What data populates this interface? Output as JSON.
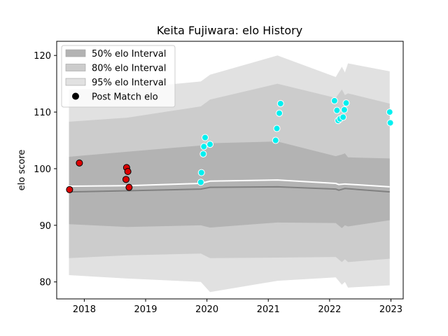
{
  "chart_data": {
    "type": "scatter",
    "title": "Keita Fujiwara: elo History",
    "xlabel": "",
    "ylabel": "elo score",
    "x_range": [
      2017.55,
      2023.2
    ],
    "ylim": [
      77,
      122.5
    ],
    "x_ticks": [
      2018,
      2019,
      2020,
      2021,
      2022,
      2023
    ],
    "x_tick_labels": [
      "2018",
      "2019",
      "2020",
      "2021",
      "2022",
      "2023"
    ],
    "y_ticks": [
      80,
      90,
      100,
      110,
      120
    ],
    "y_tick_labels": [
      "80",
      "90",
      "100",
      "110",
      "120"
    ],
    "grid": false,
    "legend_position": "upper-left",
    "legend": [
      {
        "label": "50% elo Interval",
        "kind": "band",
        "color": "#b3b3b3"
      },
      {
        "label": "80% elo Interval",
        "kind": "band",
        "color": "#cccccc"
      },
      {
        "label": "95% elo Interval",
        "kind": "band",
        "color": "#e1e1e1"
      },
      {
        "label": "Post Match elo",
        "kind": "marker",
        "color": "#000000"
      }
    ],
    "bands": [
      {
        "name": "95% elo Interval",
        "color": "#e1e1e1",
        "x": [
          2017.75,
          2018.7,
          2019.9,
          2020.05,
          2021.15,
          2022.1,
          2022.2,
          2022.25,
          2022.3,
          2022.98
        ],
        "upper": [
          114.0,
          114.2,
          115.4,
          116.6,
          120.0,
          116.2,
          118.0,
          117.0,
          118.6,
          117.2
        ],
        "lower": [
          81.2,
          80.6,
          80.0,
          78.2,
          80.2,
          80.8,
          79.5,
          80.0,
          79.0,
          79.4
        ]
      },
      {
        "name": "80% elo Interval",
        "color": "#cccccc",
        "x": [
          2017.75,
          2018.7,
          2019.9,
          2020.05,
          2021.15,
          2022.1,
          2022.2,
          2022.25,
          2022.3,
          2022.98
        ],
        "upper": [
          108.3,
          109.0,
          111.0,
          112.2,
          115.0,
          112.5,
          114.0,
          113.0,
          113.3,
          111.5
        ],
        "lower": [
          84.2,
          84.7,
          85.0,
          84.2,
          84.3,
          84.4,
          83.5,
          84.0,
          83.5,
          84.1
        ]
      },
      {
        "name": "50% elo Interval",
        "color": "#b3b3b3",
        "x": [
          2017.75,
          2018.7,
          2019.9,
          2020.05,
          2021.15,
          2022.1,
          2022.2,
          2022.25,
          2022.3,
          2022.98
        ],
        "upper": [
          102.1,
          103.0,
          104.1,
          104.5,
          104.8,
          102.2,
          102.5,
          102.7,
          102.0,
          101.8
        ],
        "lower": [
          90.2,
          89.7,
          90.0,
          89.6,
          90.5,
          90.4,
          89.5,
          90.0,
          89.8,
          90.9
        ]
      }
    ],
    "lines": [
      {
        "name": "mean",
        "color": "#808080",
        "x": [
          2017.75,
          2018.7,
          2019.9,
          2020.05,
          2021.15,
          2022.1,
          2022.15,
          2022.25,
          2022.98
        ],
        "y": [
          95.9,
          96.1,
          96.4,
          96.7,
          96.8,
          96.4,
          96.2,
          96.5,
          95.9
        ]
      },
      {
        "name": "median",
        "color": "#ffffff",
        "x": [
          2017.75,
          2018.7,
          2019.9,
          2020.05,
          2021.15,
          2022.1,
          2022.15,
          2022.25,
          2022.98
        ],
        "y": [
          96.9,
          97.0,
          97.4,
          97.8,
          98.0,
          97.4,
          97.2,
          97.3,
          96.8
        ]
      }
    ],
    "series": [
      {
        "name": "Post Match elo",
        "color": "#dd0000",
        "points": [
          {
            "x": 2017.76,
            "y": 96.3
          },
          {
            "x": 2017.92,
            "y": 101.0
          },
          {
            "x": 2018.68,
            "y": 98.1
          },
          {
            "x": 2018.69,
            "y": 100.2
          },
          {
            "x": 2018.71,
            "y": 99.5
          },
          {
            "x": 2018.73,
            "y": 96.7
          }
        ]
      },
      {
        "name": "Post Match elo",
        "color": "#00f0f0",
        "points": [
          {
            "x": 2019.9,
            "y": 97.6
          },
          {
            "x": 2019.91,
            "y": 99.3
          },
          {
            "x": 2019.94,
            "y": 102.6
          },
          {
            "x": 2019.95,
            "y": 103.9
          },
          {
            "x": 2019.97,
            "y": 105.5
          },
          {
            "x": 2020.05,
            "y": 104.3
          },
          {
            "x": 2021.12,
            "y": 105.0
          },
          {
            "x": 2021.14,
            "y": 107.1
          },
          {
            "x": 2021.18,
            "y": 109.8
          },
          {
            "x": 2021.2,
            "y": 111.5
          },
          {
            "x": 2022.08,
            "y": 112.0
          },
          {
            "x": 2022.12,
            "y": 110.3
          },
          {
            "x": 2022.14,
            "y": 108.5
          },
          {
            "x": 2022.17,
            "y": 108.8
          },
          {
            "x": 2022.22,
            "y": 109.1
          },
          {
            "x": 2022.24,
            "y": 110.4
          },
          {
            "x": 2022.27,
            "y": 111.6
          },
          {
            "x": 2022.98,
            "y": 110.0
          },
          {
            "x": 2022.99,
            "y": 108.1
          }
        ]
      }
    ]
  }
}
